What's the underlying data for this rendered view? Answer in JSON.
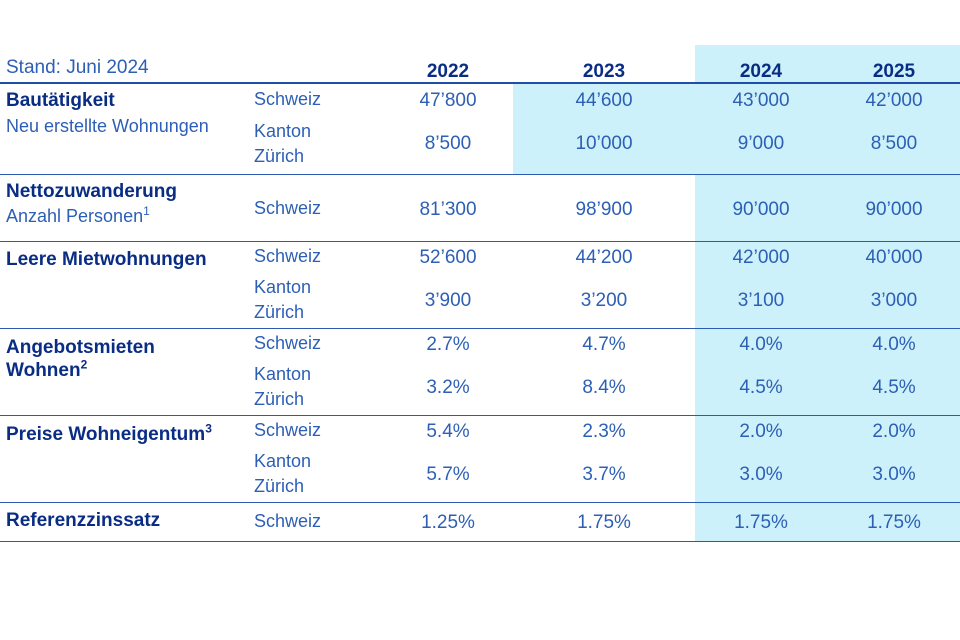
{
  "header": {
    "stand": "Stand: Juni 2024",
    "years": [
      "2022",
      "2023",
      "2024",
      "2025"
    ]
  },
  "rows": [
    {
      "title": "Bautätigkeit",
      "subtitle": "Neu erstellte Wohnungen",
      "regions": [
        {
          "name": "Schweiz",
          "values": [
            "47’800",
            "44’600",
            "43’000",
            "42’000"
          ]
        },
        {
          "name": [
            "Kanton",
            "Zürich"
          ],
          "values": [
            "8’500",
            "10’000",
            "9’000",
            "8’500"
          ]
        }
      ]
    },
    {
      "title": "Nettozuwanderung",
      "subtitle": "Anzahl Personen",
      "subtitle_footnote": "1",
      "regions": [
        {
          "name": "Schweiz",
          "values": [
            "81’300",
            "98’900",
            "90’000",
            "90’000"
          ]
        }
      ]
    },
    {
      "title": "Leere Mietwohnungen",
      "regions": [
        {
          "name": "Schweiz",
          "values": [
            "52’600",
            "44’200",
            "42’000",
            "40’000"
          ]
        },
        {
          "name": [
            "Kanton",
            "Zürich"
          ],
          "values": [
            "3’900",
            "3’200",
            "3’100",
            "3’000"
          ]
        }
      ]
    },
    {
      "title": [
        "Angebotsmieten",
        "Wohnen"
      ],
      "footnote": "2",
      "regions": [
        {
          "name": "Schweiz",
          "values": [
            "2.7%",
            "4.7%",
            "4.0%",
            "4.0%"
          ]
        },
        {
          "name": [
            "Kanton",
            "Zürich"
          ],
          "values": [
            "3.2%",
            "8.4%",
            "4.5%",
            "4.5%"
          ]
        }
      ]
    },
    {
      "title": "Preise Wohneigentum",
      "footnote": "3",
      "regions": [
        {
          "name": "Schweiz",
          "values": [
            "5.4%",
            "2.3%",
            "2.0%",
            "2.0%"
          ]
        },
        {
          "name": [
            "Kanton",
            "Zürich"
          ],
          "values": [
            "5.7%",
            "3.7%",
            "3.0%",
            "3.0%"
          ]
        }
      ]
    },
    {
      "title": "Referenzzinssatz",
      "regions": [
        {
          "name": "Schweiz",
          "values": [
            "1.25%",
            "1.75%",
            "1.75%",
            "1.75%"
          ]
        }
      ]
    }
  ],
  "colors": {
    "title_text": "#0a2d84",
    "body_text": "#2c5fb5",
    "forecast_shade": "#cdf1fb",
    "rule": "#2b5ab0"
  }
}
